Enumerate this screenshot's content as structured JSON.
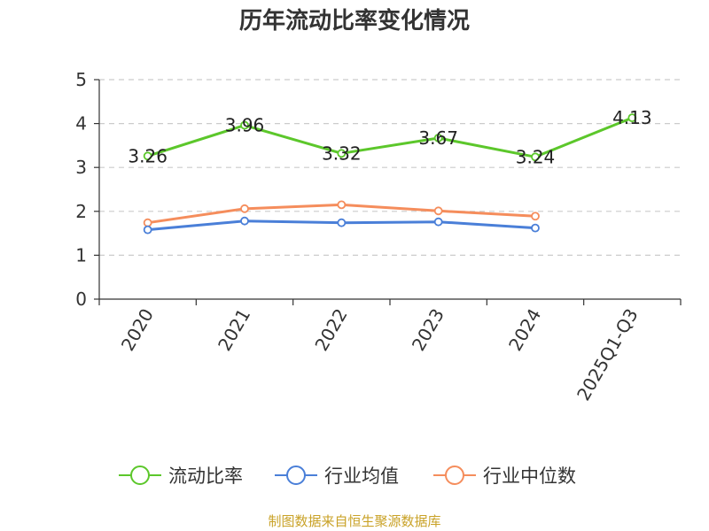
{
  "chart_data": {
    "type": "line",
    "title": "历年流动比率变化情况",
    "categories": [
      "2020",
      "2021",
      "2022",
      "2023",
      "2024",
      "2025Q1-Q3"
    ],
    "ylim": [
      0,
      5
    ],
    "yticks": [
      0,
      1,
      2,
      3,
      4,
      5
    ],
    "grid": true,
    "legend_position": "bottom",
    "series": [
      {
        "name": "流动比率",
        "color": "#5cc72b",
        "values": [
          3.26,
          3.96,
          3.32,
          3.67,
          3.24,
          4.13
        ],
        "labels": [
          "3.26",
          "3.96",
          "3.32",
          "3.67",
          "3.24",
          "4.13"
        ]
      },
      {
        "name": "行业均值",
        "color": "#4a7fd8",
        "values": [
          1.58,
          1.78,
          1.74,
          1.76,
          1.62,
          null
        ]
      },
      {
        "name": "行业中位数",
        "color": "#f58d5c",
        "values": [
          1.74,
          2.06,
          2.15,
          2.01,
          1.89,
          null
        ]
      }
    ],
    "source": "制图数据来自恒生聚源数据库"
  }
}
